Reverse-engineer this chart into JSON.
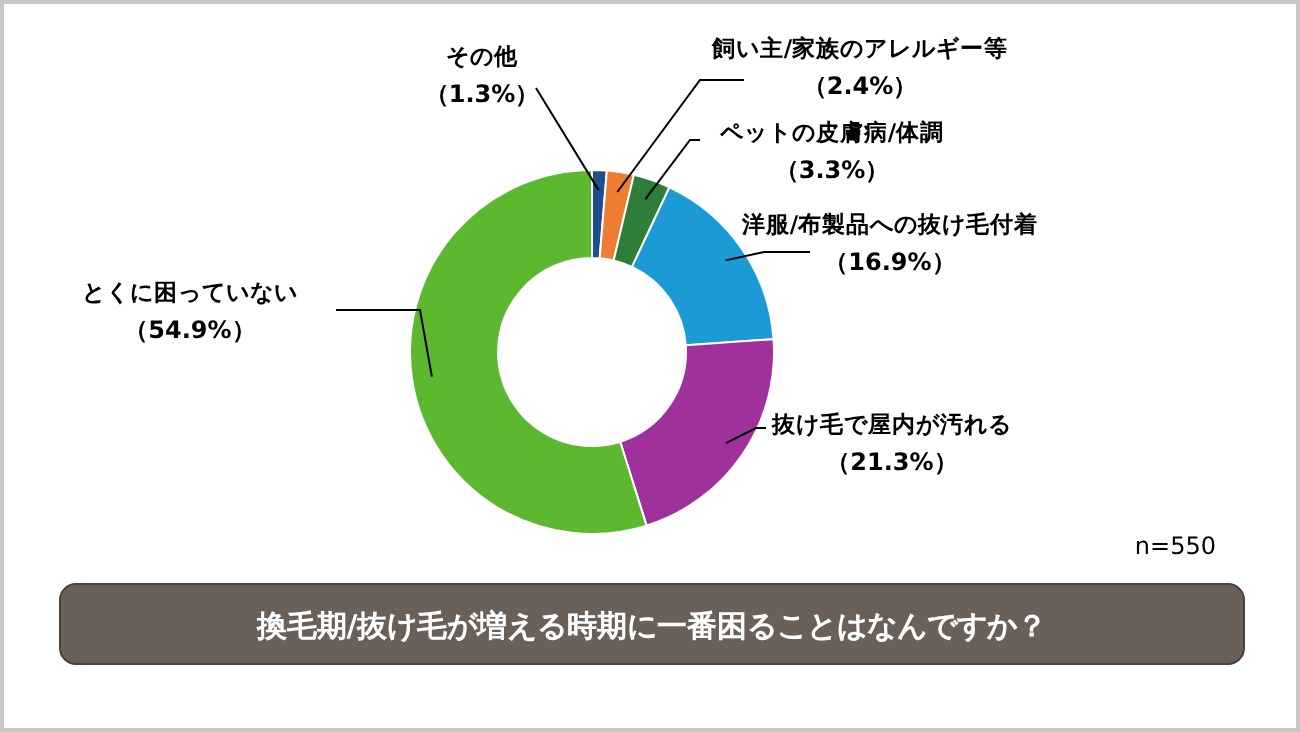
{
  "chart_data": {
    "type": "donut",
    "title": "換毛期/抜け毛が増える時期に一番困ることはなんですか？",
    "categories": [
      "その他",
      "飼い主/家族のアレルギー等",
      "ペットの皮膚病/体調",
      "洋服/布製品への抜け毛付着",
      "抜け毛で屋内が汚れる",
      "とくに困っていない"
    ],
    "values": [
      1.3,
      2.4,
      3.3,
      16.9,
      21.3,
      54.9
    ],
    "colors": [
      "#1f4e8c",
      "#ed7d31",
      "#2e7d3a",
      "#1b9ad6",
      "#a0309a",
      "#5db830"
    ],
    "value_labels": [
      "（1.3%）",
      "（2.4%）",
      "（3.3%）",
      "（16.9%）",
      "（21.3%）",
      "（54.9%）"
    ],
    "annotations": [
      "n=550"
    ]
  }
}
